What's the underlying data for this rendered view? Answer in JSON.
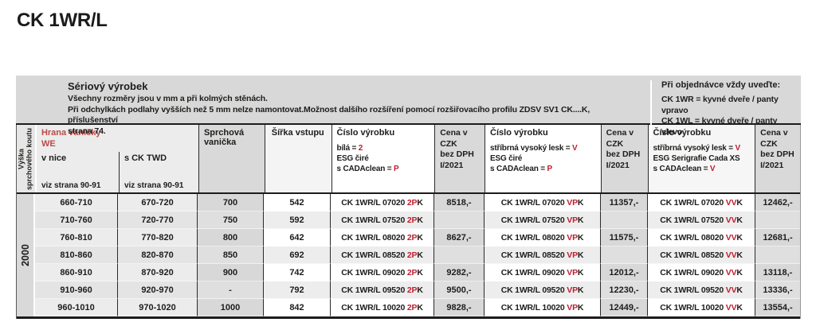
{
  "title": "CK 1WR/L",
  "band": {
    "left": {
      "heading": "Sériový výrobek",
      "lines": [
        "Všechny rozměry jsou v mm a při kolmých stěnách.",
        "Při odchylkách podlahy vyšších než 5 mm nelze namontovat.Možnost dalšího rozšíření pomocí rozšiřovacího profilu ZDSV SV1 CK....K, příslušenství",
        "strana 74."
      ]
    },
    "right": {
      "heading": "Při objednávce vždy uveďte:",
      "lines": [
        "CK 1WR = kyvné dveře / panty vpravo",
        "CK 1WL = kyvné dveře / panty vlevo"
      ]
    }
  },
  "header": {
    "height_label_line1": "Výška",
    "height_label_line2": "sprchového koutu",
    "hrana_title1": "Hrana vaničky",
    "hrana_title2": "WE",
    "sub1_label": "v nice",
    "sub2_label": "s CK TWD",
    "sub_ref": "viz strana 90-91",
    "vanicka": "Sprchová vanička",
    "sirka": "Šířka vstupu",
    "price": {
      "l1": "Cena v CZK",
      "l2": "bez DPH",
      "l3": "I/2021"
    },
    "product1": {
      "title": "Číslo výrobku",
      "spec1_pre": "bílá = ",
      "spec1_red": "2",
      "spec2": "ESG čiré",
      "spec3_pre": "s CADAclean = ",
      "spec3_red": "P"
    },
    "product2": {
      "title": "Číslo výrobku",
      "spec1_pre": "stříbrná vysoký lesk = ",
      "spec1_red": "V",
      "spec2": "ESG čiré",
      "spec3_pre": "s CADAclean = ",
      "spec3_red": "P"
    },
    "product3": {
      "title": "Číslo výrobku",
      "spec1_pre": "stříbrná vysoký lesk = ",
      "spec1_red": "V",
      "spec2": "ESG Serigrafie Cada XS",
      "spec3_pre": "s CADAclean = ",
      "spec3_red": "V"
    }
  },
  "side": {
    "height_value": "2000"
  },
  "rows": [
    {
      "nice": "660-710",
      "twd": "670-720",
      "vanicka": "700",
      "sirka": "542",
      "code1": "CK 1WR/L 07020",
      "code1_red": "2P",
      "code1_suffix": "K",
      "price1": "8518,-",
      "code2": "CK 1WR/L 07020",
      "code2_red": "VP",
      "code2_suffix": "K",
      "price2": "11357,-",
      "code3": "CK 1WR/L 07020",
      "code3_red": "VV",
      "code3_suffix": "K",
      "price3": "12462,-"
    },
    {
      "nice": "710-760",
      "twd": "720-770",
      "vanicka": "750",
      "sirka": "592",
      "code1": "CK 1WR/L 07520",
      "code1_red": "2P",
      "code1_suffix": "K",
      "price1": "",
      "code2": "CK 1WR/L 07520",
      "code2_red": "VP",
      "code2_suffix": "K",
      "price2": "",
      "code3": "CK 1WR/L 07520",
      "code3_red": "VV",
      "code3_suffix": "K",
      "price3": ""
    },
    {
      "nice": "760-810",
      "twd": "770-820",
      "vanicka": "800",
      "sirka": "642",
      "code1": "CK 1WR/L 08020",
      "code1_red": "2P",
      "code1_suffix": "K",
      "price1": "8627,-",
      "code2": "CK 1WR/L 08020",
      "code2_red": "VP",
      "code2_suffix": "K",
      "price2": "11575,-",
      "code3": "CK 1WR/L 08020",
      "code3_red": "VV",
      "code3_suffix": "K",
      "price3": "12681,-"
    },
    {
      "nice": "810-860",
      "twd": "820-870",
      "vanicka": "850",
      "sirka": "692",
      "code1": "CK 1WR/L 08520",
      "code1_red": "2P",
      "code1_suffix": "K",
      "price1": "",
      "code2": "CK 1WR/L 08520",
      "code2_red": "VP",
      "code2_suffix": "K",
      "price2": "",
      "code3": "CK 1WR/L 08520",
      "code3_red": "VV",
      "code3_suffix": "K",
      "price3": ""
    },
    {
      "nice": "860-910",
      "twd": "870-920",
      "vanicka": "900",
      "sirka": "742",
      "code1": "CK 1WR/L 09020",
      "code1_red": "2P",
      "code1_suffix": "K",
      "price1": "9282,-",
      "code2": "CK 1WR/L 09020",
      "code2_red": "VP",
      "code2_suffix": "K",
      "price2": "12012,-",
      "code3": "CK 1WR/L 09020",
      "code3_red": "VV",
      "code3_suffix": "K",
      "price3": "13118,-"
    },
    {
      "nice": "910-960",
      "twd": "920-970",
      "vanicka": "-",
      "sirka": "792",
      "code1": "CK 1WR/L 09520",
      "code1_red": "2P",
      "code1_suffix": "K",
      "price1": "9500,-",
      "code2": "CK 1WR/L 09520",
      "code2_red": "VP",
      "code2_suffix": "K",
      "price2": "12230,-",
      "code3": "CK 1WR/L 09520",
      "code3_red": "VV",
      "code3_suffix": "K",
      "price3": "13336,-"
    },
    {
      "nice": "960-1010",
      "twd": "970-1020",
      "vanicka": "1000",
      "sirka": "842",
      "code1": "CK 1WR/L 10020",
      "code1_red": "2P",
      "code1_suffix": "K",
      "price1": "9828,-",
      "code2": "CK 1WR/L 10020",
      "code2_red": "VP",
      "code2_suffix": "K",
      "price2": "12449,-",
      "code3": "CK 1WR/L 10020",
      "code3_red": "VV",
      "code3_suffix": "K",
      "price3": "13554,-"
    }
  ],
  "colors": {
    "accent_red": "#bf1e2e",
    "band_bg": "#d8d8d8",
    "gray_cell": "#d8d8d8",
    "light_cell": "#ececec",
    "line_black": "#1c1c1c"
  }
}
